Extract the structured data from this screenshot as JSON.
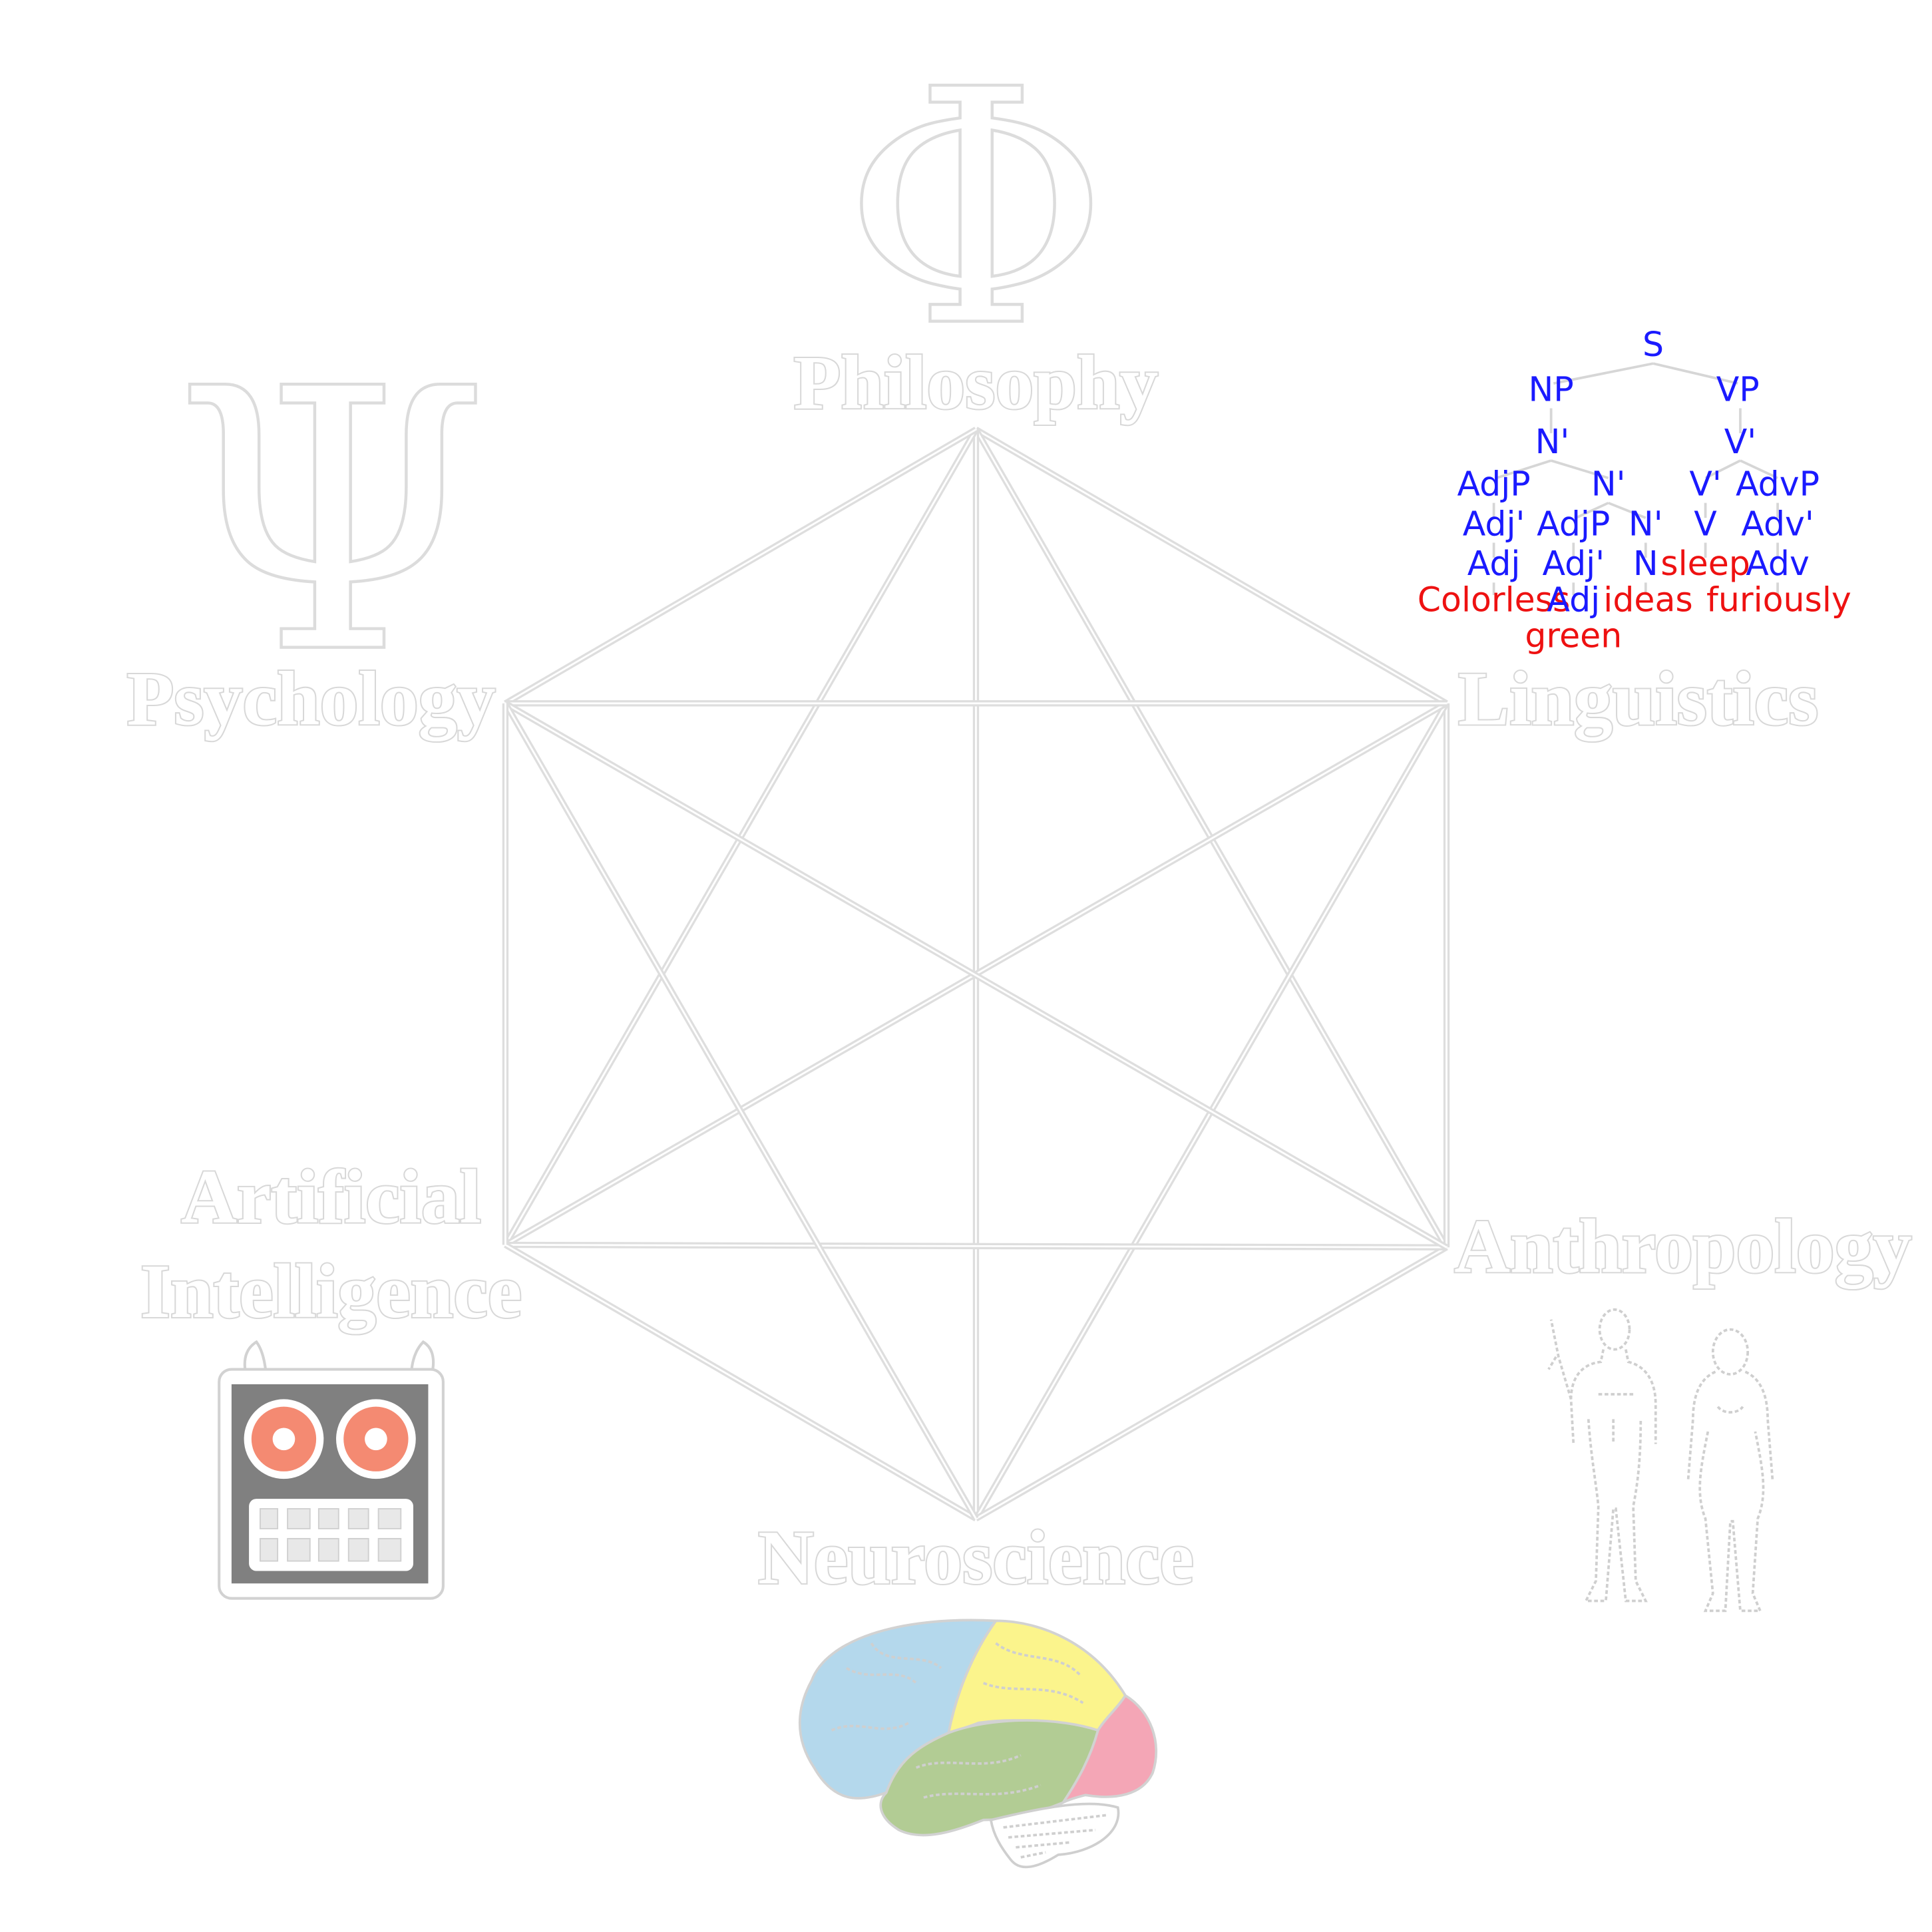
{
  "diagram": {
    "nodes": [
      {
        "id": "philosophy",
        "label": "Philosophy",
        "icon": "phi-icon"
      },
      {
        "id": "linguistics",
        "label": "Linguistics",
        "icon": "syntax-tree"
      },
      {
        "id": "anthropology",
        "label": "Anthropology",
        "icon": "human-figures-icon"
      },
      {
        "id": "neuroscience",
        "label": "Neuroscience",
        "icon": "brain-icon"
      },
      {
        "id": "ai",
        "label_line1": "Artificial",
        "label_line2": "Intelligence",
        "icon": "robot-icon"
      },
      {
        "id": "psychology",
        "label": "Psychology",
        "icon": "psi-icon"
      }
    ],
    "phi_symbol": "Φ",
    "psi_symbol": "Ψ",
    "edges": "all pairs of the six disciplines connected",
    "colors": {
      "label_outline": "#d8d8d8",
      "lines": "#dedede",
      "tree_nodes": "#1a1aff",
      "tree_words": "#ee1111",
      "robot_face": "#808080",
      "robot_eyes": "#f48a72",
      "brain_frontal": "#b4d8ec",
      "brain_parietal": "#fbf48c",
      "brain_occipital": "#f4a6b6",
      "brain_temporal": "#b2cc94"
    }
  },
  "syntax_tree": {
    "S": "S",
    "NP": "NP",
    "VP": "VP",
    "N_bar_top": "N'",
    "V_bar_top": "V'",
    "AdjP_1": "AdjP",
    "N_bar_mid": "N'",
    "V_bar_low": "V'",
    "AdvP": "AdvP",
    "Adj_bar_1": "Adj'",
    "AdjP_2": "AdjP",
    "N_bar_low": "N'",
    "V": "V",
    "Adv_bar": "Adv'",
    "Adj_1": "Adj",
    "Adj_bar_2": "Adj'",
    "N": "N",
    "word_sleep": "sleep",
    "Adv": "Adv",
    "word_colorless": "Colorless",
    "Adj_2": "Adj",
    "word_ideas": "ideas",
    "word_furiously": "furiously",
    "word_green": "green"
  }
}
